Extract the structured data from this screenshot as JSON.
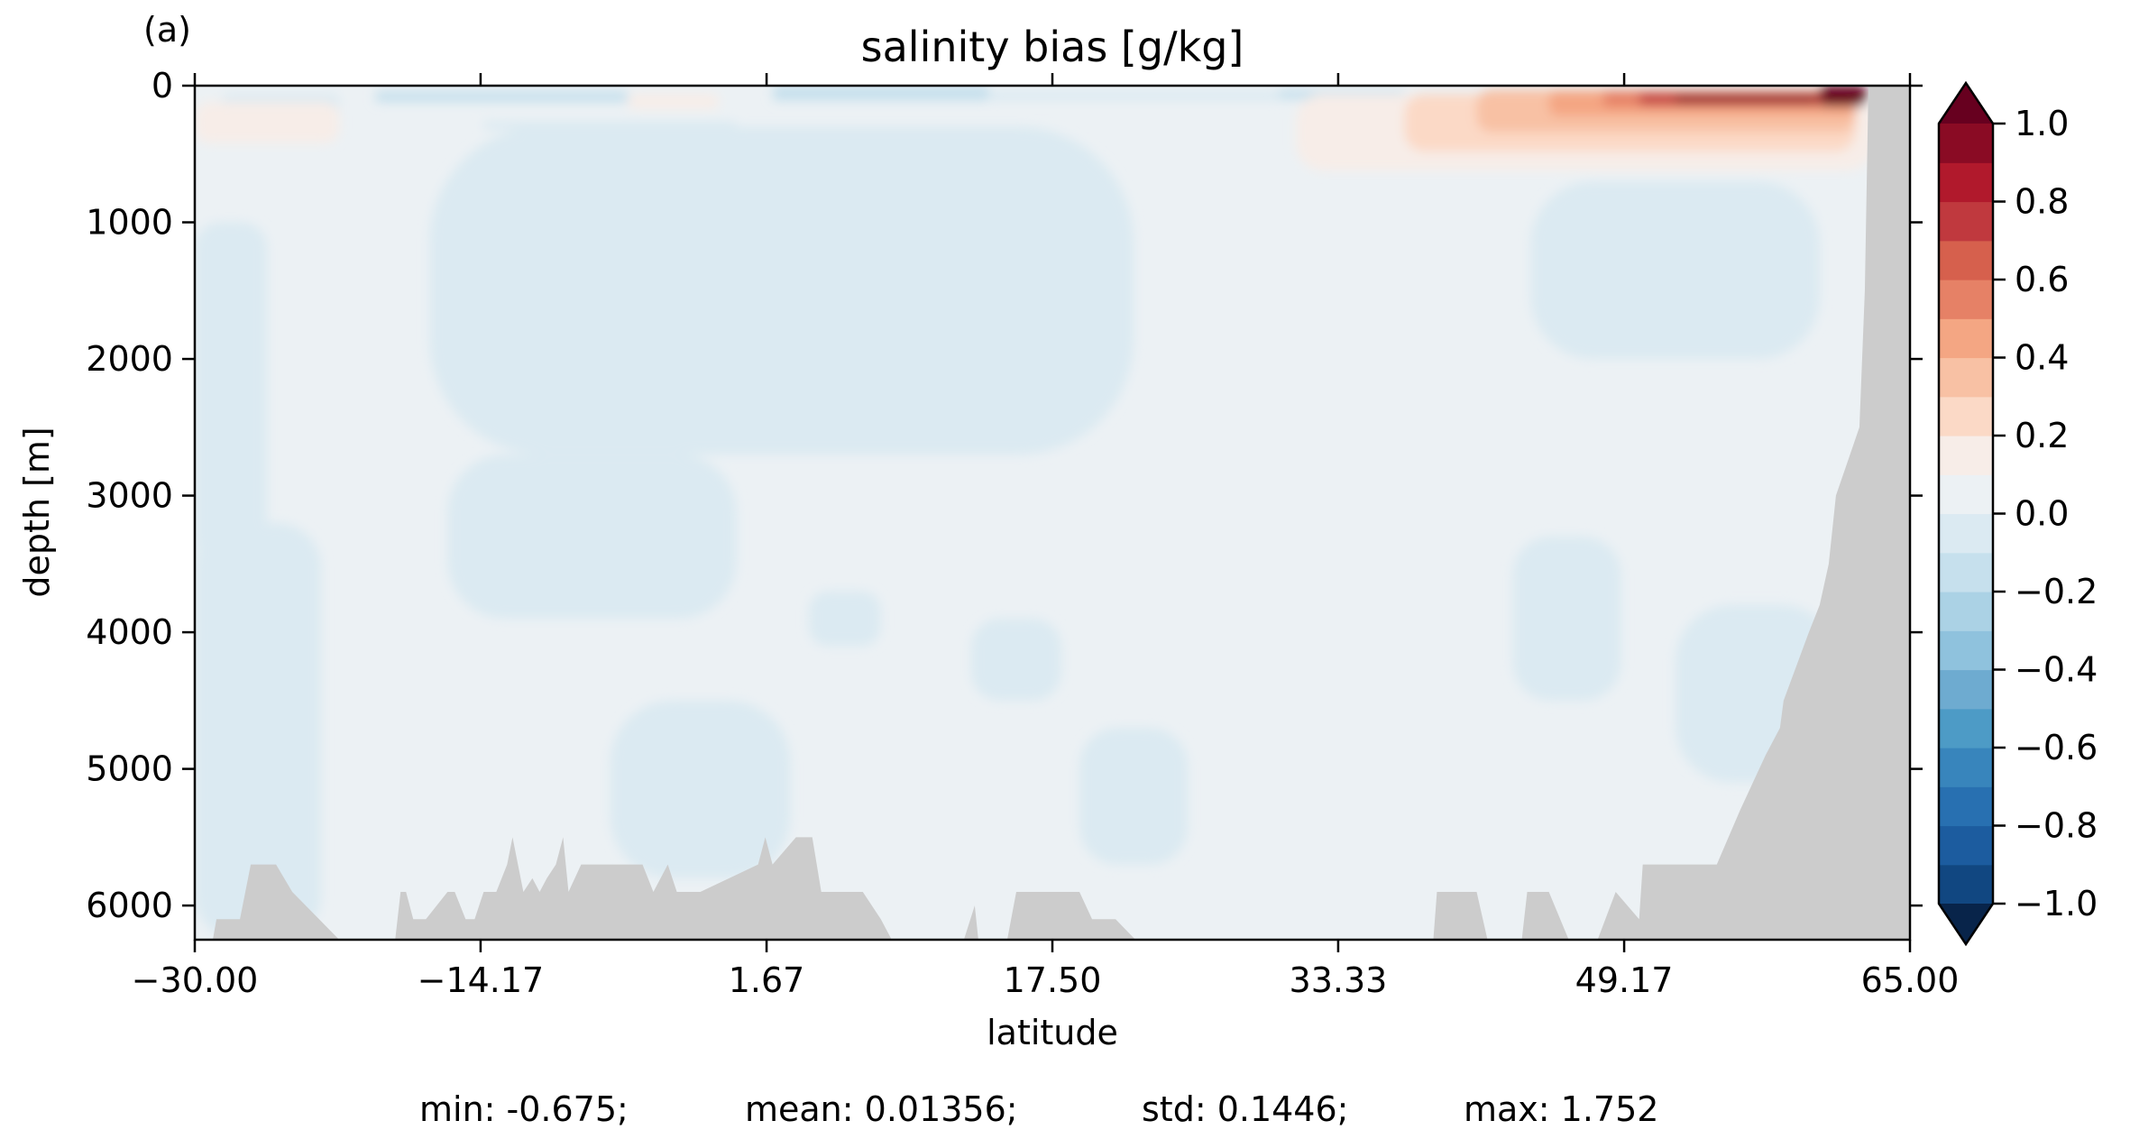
{
  "panel_label": "(a)",
  "chart_data": {
    "type": "heatmap",
    "title": "salinity bias [g/kg]",
    "xlabel": "latitude",
    "ylabel": "depth [m]",
    "xlim": [
      -30.0,
      65.0
    ],
    "ylim": [
      6250,
      0
    ],
    "x_ticks": [
      -30.0,
      -14.17,
      1.67,
      17.5,
      33.33,
      49.17,
      65.0
    ],
    "x_tick_labels": [
      "−30.00",
      "−14.17",
      "1.67",
      "17.50",
      "33.33",
      "49.17",
      "65.00"
    ],
    "y_ticks": [
      0,
      1000,
      2000,
      3000,
      4000,
      5000,
      6000
    ],
    "y_tick_labels": [
      "0",
      "1000",
      "2000",
      "3000",
      "4000",
      "5000",
      "6000"
    ],
    "colorbar": {
      "colormap": "RdBu_r",
      "extend": "both",
      "levels": [
        -1.0,
        -0.9,
        -0.8,
        -0.7,
        -0.6,
        -0.5,
        -0.4,
        -0.3,
        -0.2,
        -0.1,
        0.0,
        0.1,
        0.2,
        0.3,
        0.4,
        0.5,
        0.6,
        0.7,
        0.8,
        0.9,
        1.0
      ],
      "colors": [
        "#114781",
        "#1c5c9f",
        "#2870b1",
        "#3885bc",
        "#4d9bc6",
        "#6eabd0",
        "#8fc2dd",
        "#abd2e5",
        "#c6e0ed",
        "#dbeaf2",
        "#ecf1f4",
        "#f7ede8",
        "#fbd9c6",
        "#f8c1a4",
        "#f4a683",
        "#e68166",
        "#d6604d",
        "#c0393e",
        "#b1192c",
        "#8a0b24"
      ],
      "under_color": "#08244a",
      "over_color": "#67001f",
      "ticks": [
        1.0,
        0.8,
        0.6,
        0.4,
        0.2,
        0.0,
        -0.2,
        -0.4,
        -0.6,
        -0.8,
        -1.0
      ],
      "tick_labels": [
        "1.0",
        "0.8",
        "0.6",
        "0.4",
        "0.2",
        "0.0",
        "−0.2",
        "−0.4",
        "−0.6",
        "−0.8",
        "−1.0"
      ]
    },
    "land_color": "#cccccc",
    "bathymetry": {
      "lat": [
        -30.0,
        -29.0,
        -28.8,
        -27.5,
        -26.9,
        -25.5,
        -24.6,
        -22.0,
        -18.9,
        -18.6,
        -18.3,
        -17.9,
        -17.2,
        -16.0,
        -15.6,
        -15.0,
        -14.5,
        -14.0,
        -13.3,
        -12.7,
        -12.4,
        -11.8,
        -11.3,
        -10.9,
        -10.5,
        -10.0,
        -9.6,
        -9.3,
        -8.6,
        -5.2,
        -4.6,
        -3.8,
        -3.3,
        -2.7,
        -2.0,
        1.2,
        1.6,
        2.0,
        3.3,
        4.2,
        4.7,
        7.0,
        8.0,
        8.6,
        11.0,
        12.6,
        13.2,
        13.4,
        15.0,
        15.5,
        19.0,
        19.7,
        21.0,
        22.1,
        26.0,
        28.0,
        38.6,
        38.8,
        41.0,
        41.6,
        43.5,
        43.8,
        45.0,
        46.1,
        47.7,
        48.7,
        50.0,
        50.2,
        52.0,
        54.3,
        55.6,
        56.3,
        57.0,
        57.8,
        58.0,
        59.4,
        60.0,
        60.5,
        60.9,
        62.2,
        62.5,
        62.7,
        65.0
      ],
      "depth": [
        6250,
        6250,
        6100,
        6100,
        5700,
        5700,
        5900,
        6250,
        6250,
        5900,
        5900,
        6100,
        6100,
        5900,
        5900,
        6100,
        6100,
        5900,
        5900,
        5700,
        5500,
        5900,
        5800,
        5900,
        5800,
        5700,
        5500,
        5900,
        5700,
        5700,
        5900,
        5700,
        5900,
        5900,
        5900,
        5700,
        5500,
        5700,
        5500,
        5500,
        5900,
        5900,
        6100,
        6250,
        6250,
        6250,
        6000,
        6250,
        6250,
        5900,
        5900,
        6100,
        6100,
        6250,
        6250,
        6250,
        6250,
        5900,
        5900,
        6250,
        6250,
        5900,
        5900,
        6250,
        6250,
        5900,
        6100,
        5700,
        5700,
        5700,
        5300,
        5100,
        4900,
        4700,
        4500,
        4000,
        3800,
        3500,
        3000,
        2500,
        1500,
        0,
        0
      ]
    },
    "anomaly_regions": [
      {
        "value": 0.05,
        "lat": [
          -30,
          65
        ],
        "depth": [
          0,
          6250
        ]
      },
      {
        "value": -0.02,
        "lat": [
          -30,
          -26
        ],
        "depth": [
          1000,
          3500
        ]
      },
      {
        "value": -0.02,
        "lat": [
          -30,
          -23
        ],
        "depth": [
          3200,
          6250
        ]
      },
      {
        "value": -0.02,
        "lat": [
          -17,
          22
        ],
        "depth": [
          300,
          2700
        ]
      },
      {
        "value": -0.02,
        "lat": [
          -16,
          0
        ],
        "depth": [
          2700,
          3900
        ]
      },
      {
        "value": -0.02,
        "lat": [
          -7,
          3
        ],
        "depth": [
          4500,
          5800
        ]
      },
      {
        "value": -0.02,
        "lat": [
          4,
          8
        ],
        "depth": [
          3700,
          4100
        ]
      },
      {
        "value": -0.02,
        "lat": [
          13,
          18
        ],
        "depth": [
          3900,
          4500
        ]
      },
      {
        "value": -0.02,
        "lat": [
          19,
          25
        ],
        "depth": [
          4700,
          5700
        ]
      },
      {
        "value": -0.02,
        "lat": [
          44,
          60
        ],
        "depth": [
          700,
          2000
        ]
      },
      {
        "value": -0.02,
        "lat": [
          52,
          61
        ],
        "depth": [
          3800,
          5100
        ]
      },
      {
        "value": -0.02,
        "lat": [
          43,
          49
        ],
        "depth": [
          3300,
          4500
        ]
      },
      {
        "value": -0.02,
        "lat": [
          -28.5,
          -22
        ],
        "depth": [
          60,
          200
        ]
      },
      {
        "value": -0.12,
        "lat": [
          -20,
          -6
        ],
        "depth": [
          40,
          120
        ]
      },
      {
        "value": -0.15,
        "lat": [
          2,
          14
        ],
        "depth": [
          0,
          110
        ]
      },
      {
        "value": -0.08,
        "lat": [
          14,
          30
        ],
        "depth": [
          40,
          110
        ]
      },
      {
        "value": -0.1,
        "lat": [
          30,
          37
        ],
        "depth": [
          30,
          100
        ]
      },
      {
        "value": -0.08,
        "lat": [
          -14,
          0
        ],
        "depth": [
          260,
          320
        ]
      },
      {
        "value": 0.15,
        "lat": [
          -30,
          -22
        ],
        "depth": [
          120,
          420
        ]
      },
      {
        "value": 0.12,
        "lat": [
          -6,
          -1
        ],
        "depth": [
          60,
          170
        ]
      },
      {
        "value": 0.12,
        "lat": [
          31,
          63
        ],
        "depth": [
          60,
          620
        ]
      },
      {
        "value": 0.25,
        "lat": [
          37,
          62
        ],
        "depth": [
          60,
          480
        ]
      },
      {
        "value": 0.35,
        "lat": [
          41,
          62
        ],
        "depth": [
          30,
          340
        ]
      },
      {
        "value": 0.45,
        "lat": [
          45,
          62
        ],
        "depth": [
          40,
          220
        ]
      },
      {
        "value": 0.6,
        "lat": [
          48,
          62
        ],
        "depth": [
          40,
          150
        ]
      },
      {
        "value": 0.75,
        "lat": [
          50,
          61.5
        ],
        "depth": [
          60,
          140
        ]
      },
      {
        "value": 0.95,
        "lat": [
          52,
          59.8
        ],
        "depth": [
          70,
          130
        ]
      },
      {
        "value": 1.1,
        "lat": [
          60,
          62.6
        ],
        "depth": [
          0,
          150
        ]
      }
    ]
  },
  "stats": {
    "min": "min: -0.675;",
    "mean": "mean: 0.01356;",
    "std": "std: 0.1446;",
    "max": "max: 1.752"
  }
}
